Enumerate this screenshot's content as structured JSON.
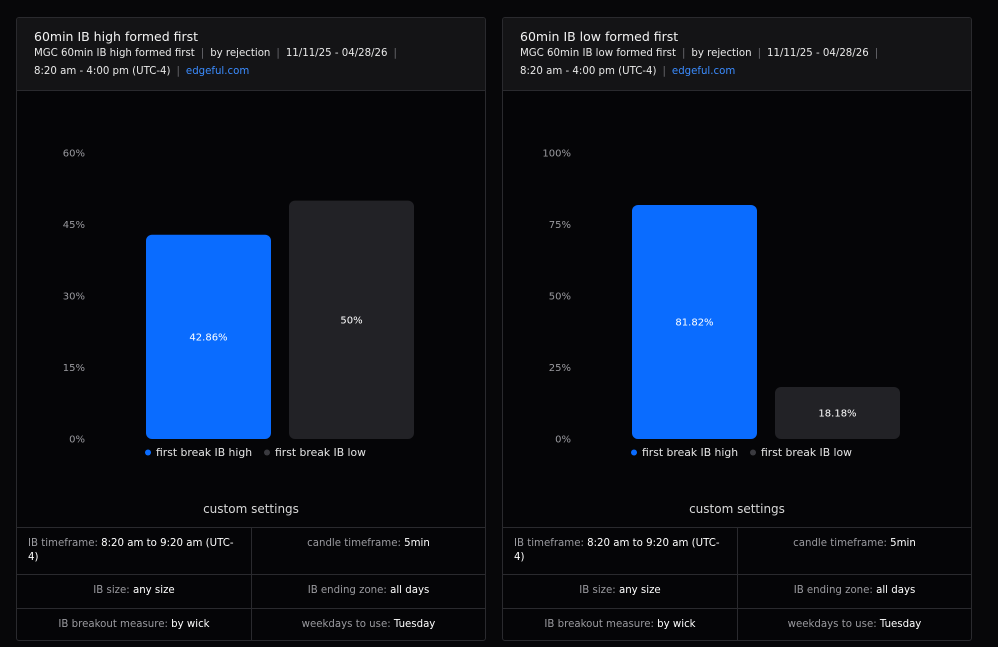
{
  "colors": {
    "blue": "#0a6cff",
    "gray": "#222226",
    "link": "#3b8cff"
  },
  "panels": [
    {
      "title": "60min IB high formed first",
      "meta": [
        "MGC 60min IB high formed first",
        "by rejection",
        "11/11/25 - 04/28/26",
        "8:20 am - 4:00 pm (UTC-4)"
      ],
      "link": "edgeful.com",
      "settings_title": "custom settings",
      "settings": [
        {
          "label": "IB timeframe:",
          "value": "8:20 am to 9:20 am (UTC-4)"
        },
        {
          "label": "candle timeframe:",
          "value": "5min"
        },
        {
          "label": "IB size:",
          "value": "any size"
        },
        {
          "label": "IB ending zone:",
          "value": "all days"
        },
        {
          "label": "IB breakout measure:",
          "value": "by wick"
        },
        {
          "label": "weekdays to use:",
          "value": "Tuesday"
        }
      ]
    },
    {
      "title": "60min IB low formed first",
      "meta": [
        "MGC 60min IB low formed first",
        "by rejection",
        "11/11/25 - 04/28/26",
        "8:20 am - 4:00 pm (UTC-4)"
      ],
      "link": "edgeful.com",
      "settings_title": "custom settings",
      "settings": [
        {
          "label": "IB timeframe:",
          "value": "8:20 am to 9:20 am (UTC-4)"
        },
        {
          "label": "candle timeframe:",
          "value": "5min"
        },
        {
          "label": "IB size:",
          "value": "any size"
        },
        {
          "label": "IB ending zone:",
          "value": "all days"
        },
        {
          "label": "IB breakout measure:",
          "value": "by wick"
        },
        {
          "label": "weekdays to use:",
          "value": "Tuesday"
        }
      ]
    }
  ],
  "chart_data": [
    {
      "type": "bar",
      "categories": [
        "first break IB high",
        "first break IB low"
      ],
      "values": [
        42.86,
        50
      ],
      "value_labels": [
        "42.86%",
        "50%"
      ],
      "bar_colors": [
        "#0a6cff",
        "#222226"
      ],
      "ylim": [
        0,
        60
      ],
      "yticks": [
        0,
        15,
        30,
        45,
        60
      ],
      "ytick_labels": [
        "0%",
        "15%",
        "30%",
        "45%",
        "60%"
      ],
      "legend": [
        "first break IB high",
        "first break IB low"
      ],
      "legend_position": "bottom",
      "grid": false
    },
    {
      "type": "bar",
      "categories": [
        "first break IB high",
        "first break IB low"
      ],
      "values": [
        81.82,
        18.18
      ],
      "value_labels": [
        "81.82%",
        "18.18%"
      ],
      "bar_colors": [
        "#0a6cff",
        "#222226"
      ],
      "ylim": [
        0,
        100
      ],
      "yticks": [
        0,
        25,
        50,
        75,
        100
      ],
      "ytick_labels": [
        "0%",
        "25%",
        "50%",
        "75%",
        "100%"
      ],
      "legend": [
        "first break IB high",
        "first break IB low"
      ],
      "legend_position": "bottom",
      "grid": false
    }
  ]
}
